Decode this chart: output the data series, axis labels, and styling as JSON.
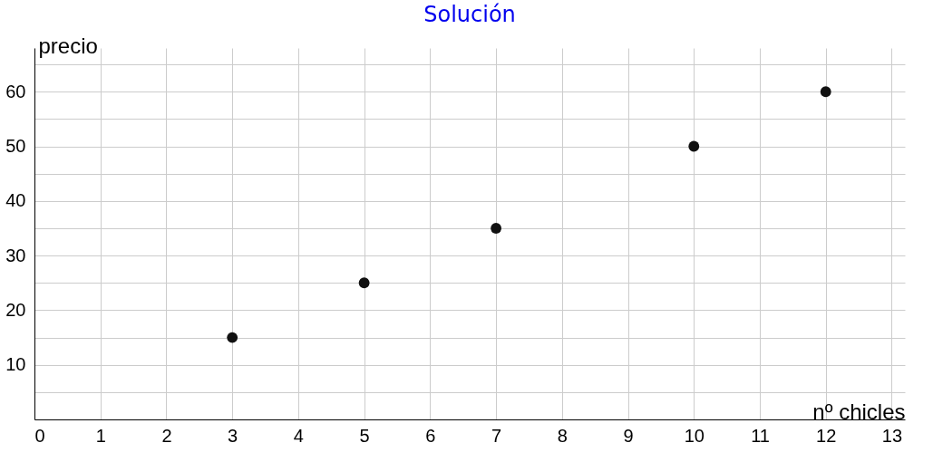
{
  "chart_data": {
    "type": "scatter",
    "title": "Solución",
    "xlabel": "nº chicles",
    "ylabel": "precio",
    "x": [
      3,
      5,
      7,
      10,
      12
    ],
    "series": [
      {
        "color": "#111111",
        "values": [
          15,
          25,
          35,
          50,
          60
        ]
      }
    ],
    "xlim": [
      0,
      13.2
    ],
    "xticks": [
      0,
      1,
      2,
      3,
      4,
      5,
      6,
      7,
      8,
      9,
      10,
      11,
      12,
      13
    ],
    "ylim": [
      0,
      68
    ],
    "yticks": [
      {
        "value": 5,
        "label": null
      },
      10,
      {
        "value": 15,
        "label": null
      },
      20,
      {
        "value": 25,
        "label": null
      },
      30,
      {
        "value": 35,
        "label": null
      },
      40,
      {
        "value": 45,
        "label": null
      },
      50,
      {
        "value": 55,
        "label": null
      },
      60,
      {
        "value": 65,
        "label": null
      }
    ],
    "grid": true,
    "marker": "circle"
  }
}
